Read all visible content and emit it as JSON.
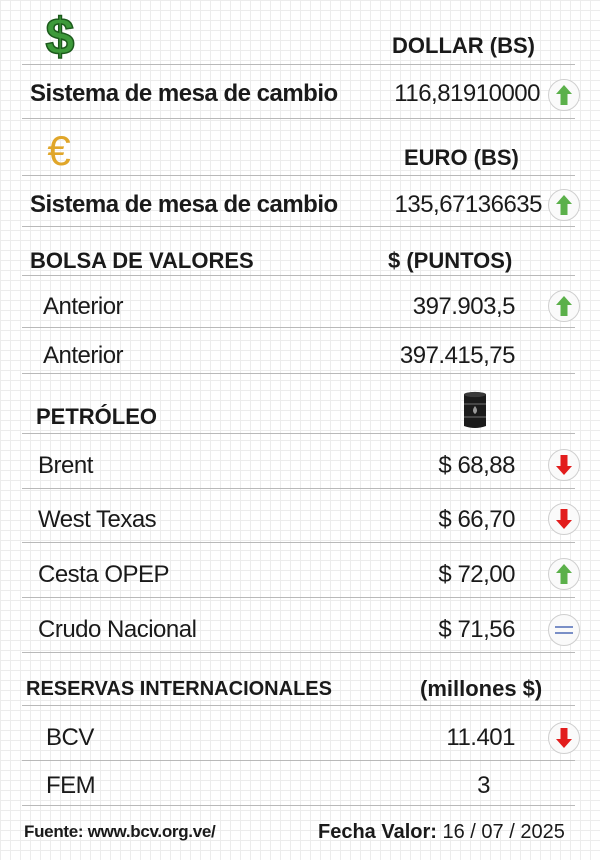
{
  "dollar": {
    "icon": "dollar-sign-icon",
    "header": "DOLLAR (BS)",
    "label": "Sistema de mesa de cambio",
    "value": "116,81910000",
    "trend": "up"
  },
  "euro": {
    "icon": "euro-sign-icon",
    "header": "EURO (BS)",
    "label": "Sistema de mesa de cambio",
    "value": "135,67136635",
    "trend": "up"
  },
  "bolsa": {
    "title": "BOLSA DE VALORES",
    "unit": "$ (PUNTOS)",
    "rows": [
      {
        "label": "Anterior",
        "value": "397.903,5",
        "trend": "up"
      },
      {
        "label": "Anterior",
        "value": "397.415,75"
      }
    ]
  },
  "petroleo": {
    "title": "PETRÓLEO",
    "icon": "oil-barrel-icon",
    "rows": [
      {
        "label": "Brent",
        "value": "$ 68,88",
        "trend": "down"
      },
      {
        "label": "West Texas",
        "value": "$ 66,70",
        "trend": "down"
      },
      {
        "label": "Cesta OPEP",
        "value": "$ 72,00",
        "trend": "up"
      },
      {
        "label": "Crudo Nacional",
        "value": "$ 71,56",
        "trend": "equal"
      }
    ]
  },
  "reservas": {
    "title": "RESERVAS INTERNACIONALES",
    "unit": "(millones $)",
    "rows": [
      {
        "label": "BCV",
        "value": "11.401",
        "trend": "down"
      },
      {
        "label": "FEM",
        "value": "3"
      }
    ]
  },
  "footer": {
    "source": "Fuente: www.bcv.org.ve/",
    "date_label": "Fecha Valor:",
    "date_value": "16 / 07 / 2025"
  },
  "colors": {
    "up": "#5bb04a",
    "down": "#e21c1c",
    "equal": "#7a8fc7",
    "dollar": "#3d9a3a",
    "euro": "#e0a62a"
  }
}
